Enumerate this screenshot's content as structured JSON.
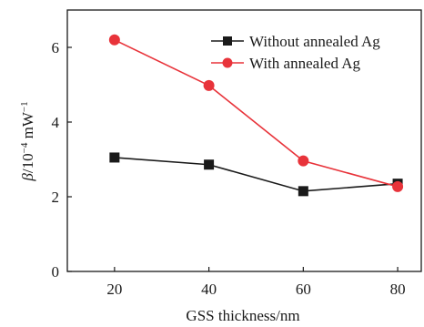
{
  "chart_data": {
    "type": "line",
    "xlabel": "GSS thickness/nm",
    "ylabel_parts": {
      "symbol": "β",
      "unit": "/10",
      "exponent": "−4",
      "tail": " mW",
      "tail_exponent": "−1"
    },
    "x": [
      20,
      40,
      60,
      80
    ],
    "xlim": [
      10,
      85
    ],
    "ylim": [
      0,
      7
    ],
    "xticks": [
      "20",
      "40",
      "60",
      "80"
    ],
    "yticks": [
      "0",
      "2",
      "4",
      "6"
    ],
    "grid": false,
    "legend_position": "top-right",
    "series": [
      {
        "name": "Without annealed Ag",
        "values": [
          3.05,
          2.86,
          2.15,
          2.35
        ],
        "color": "#1a1a1a",
        "marker": "square"
      },
      {
        "name": "With annealed Ag",
        "values": [
          6.2,
          4.98,
          2.96,
          2.27
        ],
        "color": "#e8333a",
        "marker": "circle"
      }
    ]
  }
}
